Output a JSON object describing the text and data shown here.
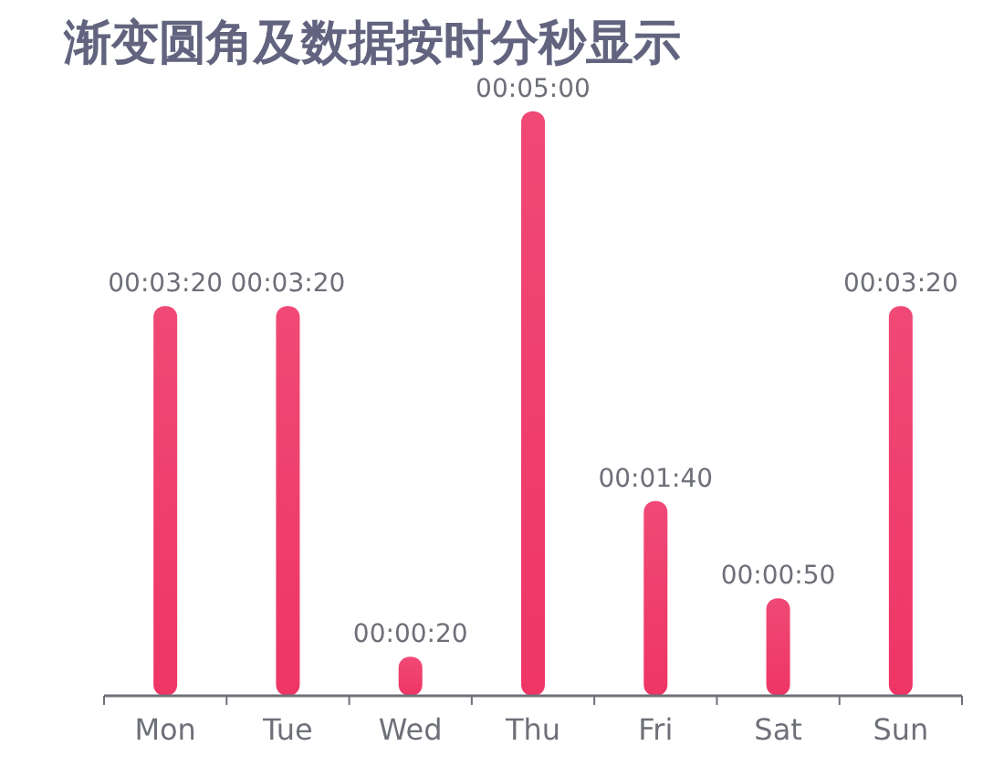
{
  "chart_data": {
    "type": "bar",
    "title": "渐变圆角及数据按时分秒显示",
    "categories": [
      "Mon",
      "Tue",
      "Wed",
      "Thu",
      "Fri",
      "Sat",
      "Sun"
    ],
    "series": [
      {
        "color": "#ee3566",
        "values": [
          200,
          200,
          20,
          300,
          100,
          50,
          200
        ],
        "value_labels": [
          "00:03:20",
          "00:03:20",
          "00:00:20",
          "00:05:00",
          "00:01:40",
          "00:00:50",
          "00:03:20"
        ]
      }
    ],
    "ylim": [
      0,
      300
    ]
  }
}
